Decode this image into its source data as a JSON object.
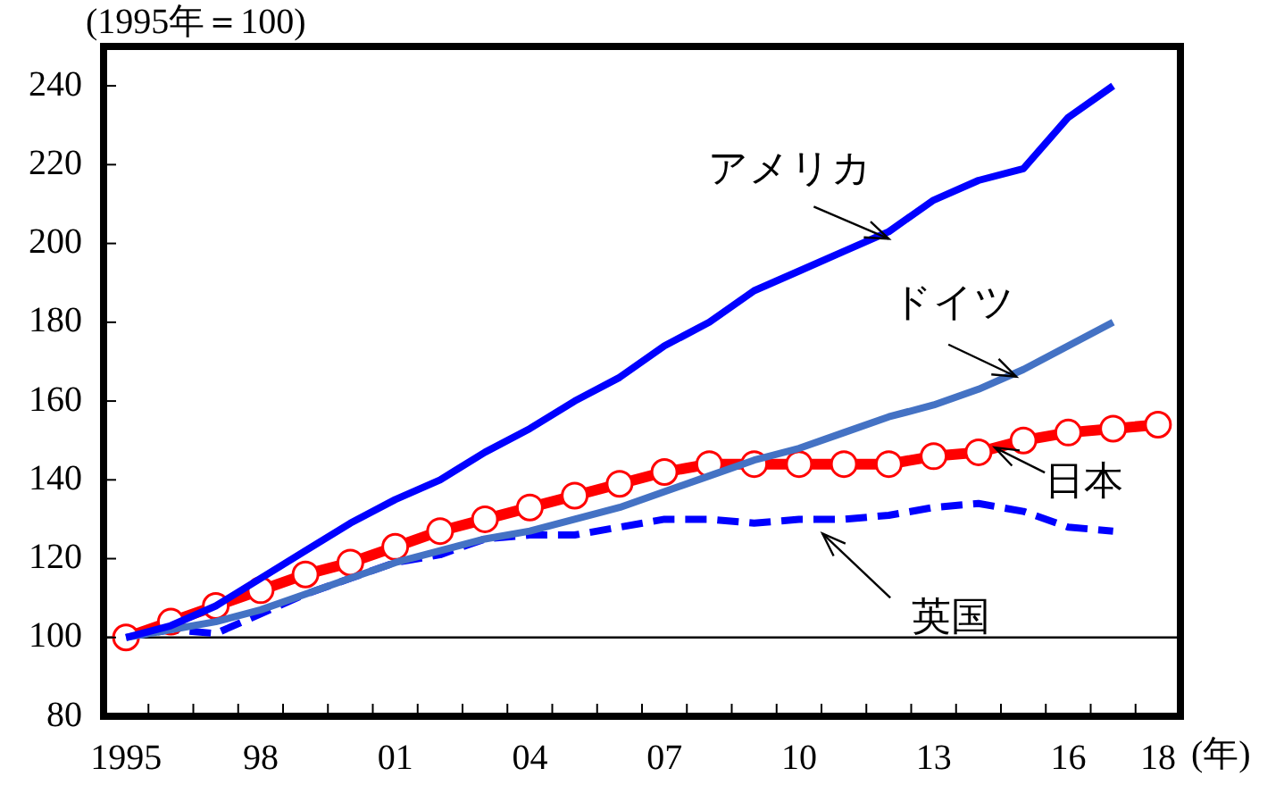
{
  "chart_data": {
    "type": "line",
    "ylabel": "(1995年＝100)",
    "xlabel": "(年)",
    "categories": [
      "1995",
      null,
      null,
      "98",
      null,
      null,
      "01",
      null,
      null,
      "04",
      null,
      null,
      "07",
      null,
      null,
      "10",
      null,
      null,
      "13",
      null,
      null,
      "16",
      null,
      "18"
    ],
    "series": [
      {
        "name": "アメリカ",
        "color": "#0000ff",
        "line_style": "solid",
        "marker": "none",
        "values": [
          100,
          103,
          108,
          115,
          122,
          129,
          135,
          140,
          147,
          153,
          160,
          166,
          174,
          180,
          188,
          193,
          198,
          203,
          211,
          216,
          219,
          232,
          240,
          null
        ]
      },
      {
        "name": "ドイツ",
        "color": "#4472c4",
        "line_style": "solid",
        "marker": "none",
        "values": [
          100,
          102,
          104,
          107,
          111,
          115,
          119,
          122,
          125,
          127,
          130,
          133,
          137,
          141,
          145,
          148,
          152,
          156,
          159,
          163,
          168,
          174,
          180,
          null
        ]
      },
      {
        "name": "日本",
        "color": "#ff0000",
        "line_style": "solid",
        "marker": "circle",
        "values": [
          100,
          104,
          108,
          112,
          116,
          119,
          123,
          127,
          130,
          133,
          136,
          139,
          142,
          144,
          144,
          144,
          144,
          144,
          146,
          147,
          150,
          152,
          153,
          154
        ]
      },
      {
        "name": "英国",
        "color": "#0000ff",
        "line_style": "dashed",
        "marker": "none",
        "values": [
          100,
          102,
          101,
          106,
          111,
          115,
          119,
          121,
          125,
          126,
          126,
          128,
          130,
          130,
          129,
          130,
          130,
          131,
          133,
          134,
          132,
          128,
          127,
          null
        ]
      }
    ],
    "ylim": [
      80,
      250
    ],
    "yticks": [
      80,
      100,
      120,
      140,
      160,
      180,
      200,
      220,
      240
    ],
    "ref_lines": [
      {
        "axis": "y",
        "value": 100,
        "color": "#000000"
      }
    ],
    "legend": false
  }
}
